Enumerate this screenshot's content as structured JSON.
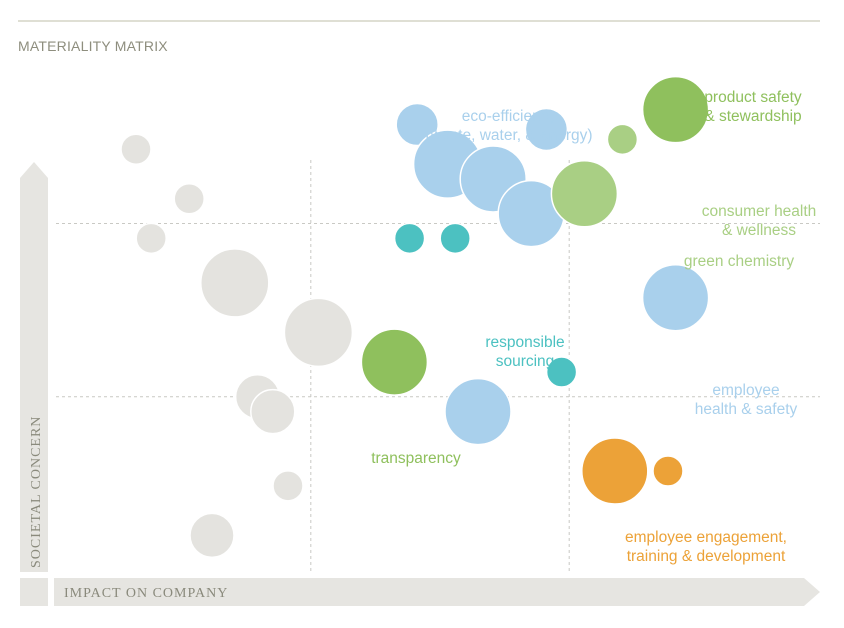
{
  "chart_data": {
    "type": "scatter",
    "title": "MATERIALITY MATRIX",
    "xlabel": "IMPACT ON COMPANY",
    "ylabel": "SOCIETAL CONCERN",
    "xlim": [
      0,
      100
    ],
    "ylim": [
      0,
      100
    ],
    "grid": {
      "x": [
        33,
        67
      ],
      "y": [
        35,
        70
      ]
    },
    "colors": {
      "gray": "#e4e3df",
      "lightblue": "#a9d0ec",
      "teal": "#4cc1c1",
      "green": "#8fc05d",
      "lightgreen": "#a9cf84",
      "orange": "#eca238"
    },
    "groups": [
      {
        "name": "eco-efficiency\n(waste, water, & energy)",
        "color": "lightblue"
      },
      {
        "name": "product safety\n& stewardship",
        "color": "green"
      },
      {
        "name": "consumer health\n& wellness",
        "color": "lightgreen"
      },
      {
        "name": "green chemistry",
        "color": "lightgreen"
      },
      {
        "name": "responsible\nsourcing",
        "color": "teal"
      },
      {
        "name": "employee\nhealth & safety",
        "color": "lightblue"
      },
      {
        "name": "transparency",
        "color": "green"
      },
      {
        "name": "employee engagement,\ntraining & development",
        "color": "orange"
      }
    ],
    "points": [
      {
        "x": 10,
        "y": 85,
        "r": 15,
        "color": "gray"
      },
      {
        "x": 17,
        "y": 75,
        "r": 15,
        "color": "gray"
      },
      {
        "x": 12,
        "y": 67,
        "r": 15,
        "color": "gray"
      },
      {
        "x": 23,
        "y": 58,
        "r": 34,
        "color": "gray"
      },
      {
        "x": 34,
        "y": 48,
        "r": 34,
        "color": "gray"
      },
      {
        "x": 26,
        "y": 35,
        "r": 22,
        "color": "gray"
      },
      {
        "x": 28,
        "y": 32,
        "r": 22,
        "color": "gray"
      },
      {
        "x": 30,
        "y": 17,
        "r": 15,
        "color": "gray"
      },
      {
        "x": 20,
        "y": 7,
        "r": 22,
        "color": "gray"
      },
      {
        "x": 47,
        "y": 90,
        "r": 21,
        "color": "lightblue"
      },
      {
        "x": 64,
        "y": 89,
        "r": 21,
        "color": "lightblue"
      },
      {
        "x": 51,
        "y": 82,
        "r": 34,
        "color": "lightblue"
      },
      {
        "x": 57,
        "y": 79,
        "r": 33,
        "color": "lightblue"
      },
      {
        "x": 62,
        "y": 72,
        "r": 33,
        "color": "lightblue"
      },
      {
        "x": 81,
        "y": 55,
        "r": 33,
        "color": "lightblue"
      },
      {
        "x": 55,
        "y": 32,
        "r": 33,
        "color": "lightblue"
      },
      {
        "x": 46,
        "y": 67,
        "r": 15,
        "color": "teal"
      },
      {
        "x": 52,
        "y": 67,
        "r": 15,
        "color": "teal"
      },
      {
        "x": 66,
        "y": 40,
        "r": 15,
        "color": "teal"
      },
      {
        "x": 44,
        "y": 42,
        "r": 33,
        "color": "green"
      },
      {
        "x": 81,
        "y": 93,
        "r": 33,
        "color": "green"
      },
      {
        "x": 74,
        "y": 87,
        "r": 15,
        "color": "lightgreen"
      },
      {
        "x": 69,
        "y": 76,
        "r": 33,
        "color": "lightgreen"
      },
      {
        "x": 73,
        "y": 20,
        "r": 33,
        "color": "orange"
      },
      {
        "x": 80,
        "y": 20,
        "r": 15,
        "color": "orange"
      }
    ]
  }
}
